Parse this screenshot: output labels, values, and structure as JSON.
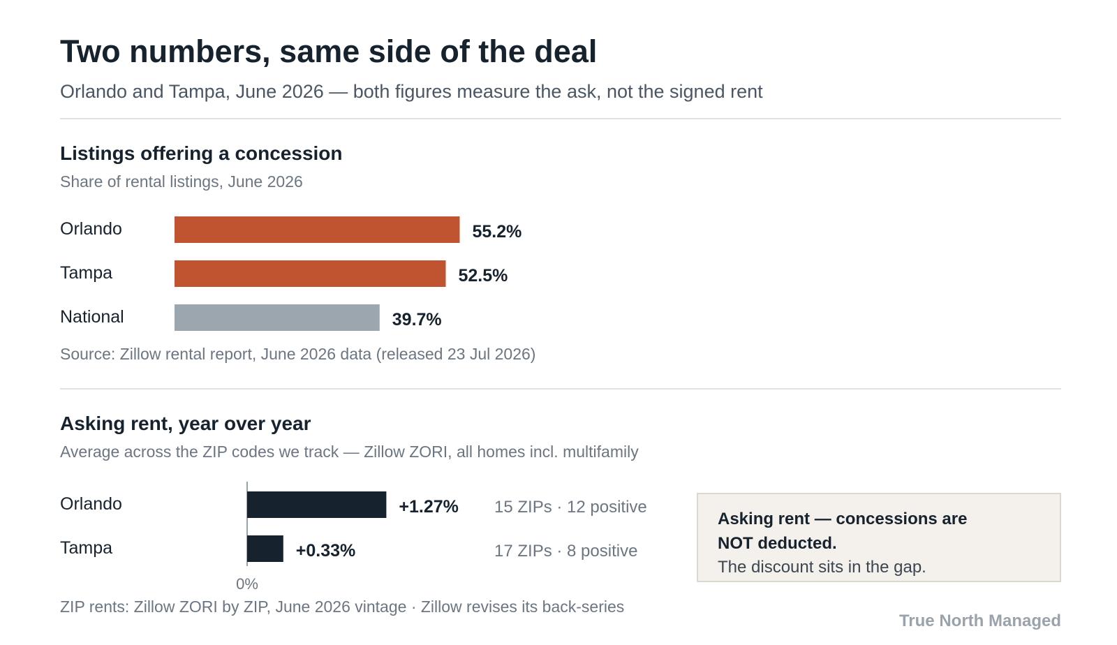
{
  "header": {
    "title": "Two numbers, same side of the deal",
    "subtitle": "Orlando and Tampa, June 2026 — both figures measure the ask, not the signed rent"
  },
  "section_concessions": {
    "title": "Listings offering a concession",
    "subtitle": "Share of rental listings, June 2026",
    "source": "Source: Zillow rental report, June 2026 data (released 23 Jul 2026)"
  },
  "section_rent": {
    "title": "Asking rent, year over year",
    "subtitle": "Average across the ZIP codes we track — Zillow ZORI, all homes incl. multifamily",
    "source": "ZIP rents: Zillow ZORI by ZIP, June 2026 vintage · Zillow revises its back-series"
  },
  "note": {
    "strong": "Asking rent — concessions are NOT deducted.",
    "body": "The discount sits in the gap."
  },
  "brand": "True North Managed",
  "colors": {
    "metro_bar": "#c05431",
    "national_bar": "#9ba6af",
    "rent_bar": "#16222e",
    "axis": "#9aa3ab"
  },
  "chart_data": [
    {
      "type": "bar",
      "orientation": "horizontal",
      "title": "Listings offering a concession",
      "subtitle": "Share of rental listings, June 2026",
      "categories": [
        "Orlando",
        "Tampa",
        "National"
      ],
      "values": [
        55.2,
        52.5,
        39.7
      ],
      "labels": [
        "55.2%",
        "52.5%",
        "39.7%"
      ],
      "unit": "%",
      "xlim": [
        0,
        100
      ],
      "bar_colors": [
        "#c05431",
        "#c05431",
        "#9ba6af"
      ],
      "grid": false
    },
    {
      "type": "bar",
      "orientation": "horizontal",
      "title": "Asking rent, year over year",
      "subtitle": "Average across the ZIP codes we track — Zillow ZORI, all homes incl. multifamily",
      "categories": [
        "Orlando",
        "Tampa"
      ],
      "values": [
        1.27,
        0.33
      ],
      "labels": [
        "+1.27%",
        "+0.33%"
      ],
      "zip_notes": [
        "15 ZIPs · 12 positive",
        "17 ZIPs · 8 positive"
      ],
      "zero_label": "0%",
      "unit": "%",
      "xlim": [
        0,
        2
      ],
      "grid": false
    }
  ]
}
